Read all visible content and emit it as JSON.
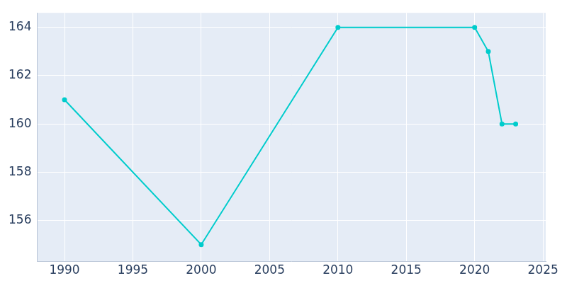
{
  "chart_data": {
    "type": "line",
    "x": [
      1990,
      2000,
      2010,
      2020,
      2021,
      2022,
      2023
    ],
    "values": [
      161,
      155,
      164,
      164,
      163,
      160,
      160
    ],
    "color": "#00cccc",
    "marker": "circle",
    "xlim": [
      1988,
      2025.2
    ],
    "xticks": [
      1990,
      1995,
      2000,
      2005,
      2010,
      2015,
      2020,
      2025
    ],
    "ylim": [
      154.3,
      164.6
    ],
    "yticks": [
      156,
      158,
      160,
      162,
      164
    ],
    "grid": true
  }
}
